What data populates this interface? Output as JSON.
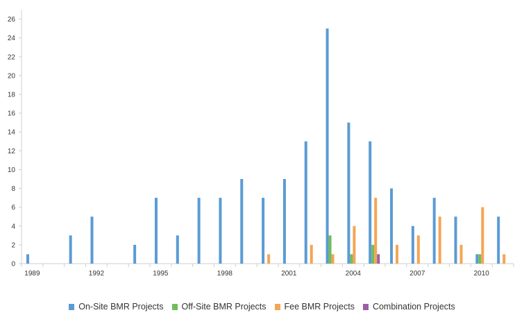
{
  "chart_data": {
    "type": "bar",
    "title": "",
    "xlabel": "",
    "ylabel": "",
    "ylim": [
      0,
      27
    ],
    "yticks": [
      0,
      2,
      4,
      6,
      8,
      10,
      12,
      14,
      16,
      18,
      20,
      22,
      24,
      26
    ],
    "categories": [
      "1989",
      "1990",
      "1991",
      "1992",
      "1993",
      "1994",
      "1995",
      "1996",
      "1997",
      "1998",
      "1999",
      "2000",
      "2001",
      "2002",
      "2003",
      "2004",
      "2005",
      "2006",
      "2007",
      "2008",
      "2009",
      "2010",
      "2011"
    ],
    "x_tick_labels": [
      "1989",
      "1992",
      "1995",
      "1998",
      "2001",
      "2004",
      "2007",
      "2010"
    ],
    "grid": false,
    "legend_position": "bottom",
    "series": [
      {
        "name": "On-Site BMR Projects",
        "color": "#5b9bd5",
        "values": [
          1,
          0,
          3,
          5,
          0,
          2,
          7,
          3,
          7,
          7,
          9,
          7,
          9,
          13,
          25,
          15,
          13,
          8,
          4,
          7,
          5,
          1,
          5
        ]
      },
      {
        "name": "Off-Site BMR Projects",
        "color": "#70bd5c",
        "values": [
          0,
          0,
          0,
          0,
          0,
          0,
          0,
          0,
          0,
          0,
          0,
          0,
          0,
          0,
          3,
          1,
          2,
          0,
          0,
          0,
          0,
          1,
          0
        ]
      },
      {
        "name": "Fee BMR Projects",
        "color": "#f5a553",
        "values": [
          0,
          0,
          0,
          0,
          0,
          0,
          0,
          0,
          0,
          0,
          0,
          1,
          0,
          2,
          1,
          4,
          7,
          2,
          3,
          5,
          2,
          6,
          1
        ]
      },
      {
        "name": "Combination Projects",
        "color": "#9b5fa6",
        "values": [
          0,
          0,
          0,
          0,
          0,
          0,
          0,
          0,
          0,
          0,
          0,
          0,
          0,
          0,
          0,
          0,
          1,
          0,
          0,
          0,
          0,
          0,
          0
        ]
      }
    ]
  }
}
